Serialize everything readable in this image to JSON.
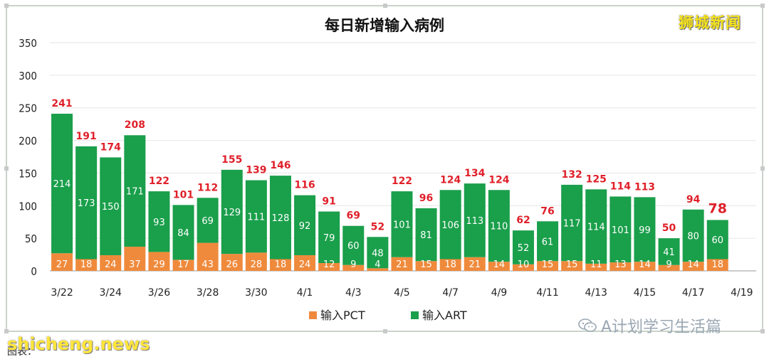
{
  "brand": "狮城新闻",
  "wechat": "A计划学习生活篇",
  "watermark": "shicheng.news",
  "caption": "图表：",
  "colors": {
    "art": "#1a9f4b",
    "pct": "#ef8a3c",
    "total_label": "#e0202a",
    "inner_label": "#ffffff",
    "grid": "#e6e6e6"
  },
  "chart_data": {
    "type": "bar",
    "stacked": true,
    "title": "每日新增输入病例",
    "categories": [
      "3/22",
      "3/23",
      "3/24",
      "3/25",
      "3/26",
      "3/27",
      "3/28",
      "3/29",
      "3/30",
      "3/31",
      "4/1",
      "4/2",
      "4/3",
      "4/4",
      "4/5",
      "4/6",
      "4/7",
      "4/8",
      "4/9",
      "4/10",
      "4/11",
      "4/12",
      "4/13",
      "4/14",
      "4/15",
      "4/16",
      "4/17",
      "4/18"
    ],
    "x_tick_labels": [
      "3/22",
      "3/24",
      "3/26",
      "3/28",
      "3/30",
      "4/1",
      "4/3",
      "4/5",
      "4/7",
      "4/9",
      "4/11",
      "4/13",
      "4/15",
      "4/17",
      "4/19"
    ],
    "series": [
      {
        "name": "输入PCT",
        "color": "#ef8a3c",
        "values": [
          27,
          18,
          24,
          37,
          29,
          17,
          43,
          26,
          28,
          18,
          24,
          12,
          9,
          4,
          21,
          15,
          18,
          21,
          14,
          10,
          15,
          15,
          11,
          13,
          14,
          9,
          14,
          18
        ]
      },
      {
        "name": "输入ART",
        "color": "#1a9f4b",
        "values": [
          214,
          173,
          150,
          171,
          93,
          84,
          69,
          129,
          111,
          128,
          92,
          79,
          60,
          48,
          101,
          81,
          106,
          113,
          110,
          52,
          61,
          117,
          114,
          101,
          99,
          41,
          80,
          60
        ]
      }
    ],
    "totals": [
      241,
      191,
      174,
      208,
      122,
      101,
      112,
      155,
      139,
      146,
      116,
      91,
      69,
      52,
      122,
      96,
      124,
      134,
      124,
      62,
      76,
      132,
      125,
      114,
      113,
      50,
      94,
      78
    ],
    "ylim": [
      0,
      350
    ],
    "yticks": [
      0,
      50,
      100,
      150,
      200,
      250,
      300,
      350
    ],
    "grid": true,
    "legend_position": "bottom"
  }
}
